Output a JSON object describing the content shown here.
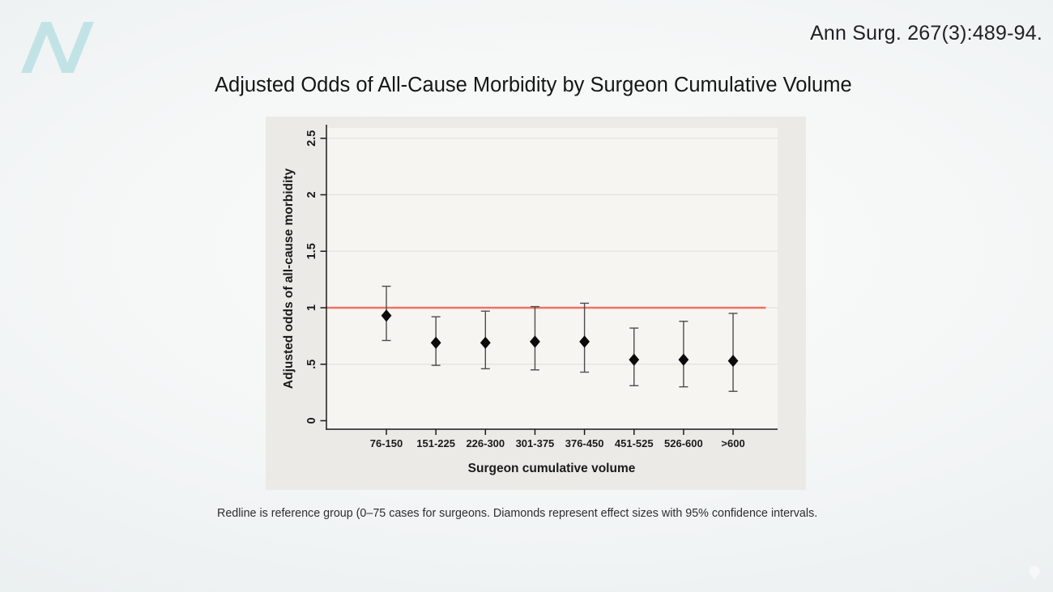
{
  "header": {
    "citation": "Ann Surg. 267(3):489-94.",
    "logo_letter": "N"
  },
  "slide": {
    "title": "Adjusted Odds of All-Cause Morbidity by Surgeon Cumulative Volume",
    "caption": "Redline is reference group (0–75 cases for surgeons. Diamonds represent effect sizes with 95% confidence intervals."
  },
  "colors": {
    "reference_line": "#ef7164",
    "marker": "#0b0b0b",
    "error_bar": "#4d4d4d",
    "logo_teal": "#c2e3e6",
    "panel_bg": "#ebeae6",
    "plot_bg": "#f6f5f1",
    "grid": "#e3e1dc",
    "axis": "#1a1a1a"
  },
  "chart_data": {
    "type": "scatter",
    "subtype": "point-estimates-with-95%-CI-errorbars",
    "title": "Adjusted Odds of All-Cause Morbidity by Surgeon Cumulative Volume",
    "xlabel": "Surgeon cumulative volume",
    "ylabel": "Adjusted odds of all-cause morbidity",
    "categories": [
      "76-150",
      "151-225",
      "226-300",
      "301-375",
      "376-450",
      "451-525",
      "526-600",
      ">600"
    ],
    "series": [
      {
        "name": "Adjusted odds of all-cause morbidity (diamond = effect size)",
        "values": [
          0.93,
          0.69,
          0.69,
          0.7,
          0.7,
          0.54,
          0.54,
          0.53
        ],
        "ci_low": [
          0.71,
          0.49,
          0.46,
          0.45,
          0.43,
          0.31,
          0.3,
          0.26
        ],
        "ci_high": [
          1.19,
          0.92,
          0.97,
          1.01,
          1.04,
          0.82,
          0.88,
          0.95
        ]
      }
    ],
    "reference_line": {
      "value": 1.0,
      "label": "reference group (0–75 cases for surgeons)"
    },
    "ylim": [
      0,
      2.5
    ],
    "yticks": [
      0,
      0.5,
      1,
      1.5,
      2,
      2.5
    ],
    "ytick_labels": [
      "0",
      ".5",
      "1",
      "1.5",
      "2",
      "2.5"
    ],
    "grid": true,
    "legend": false
  }
}
